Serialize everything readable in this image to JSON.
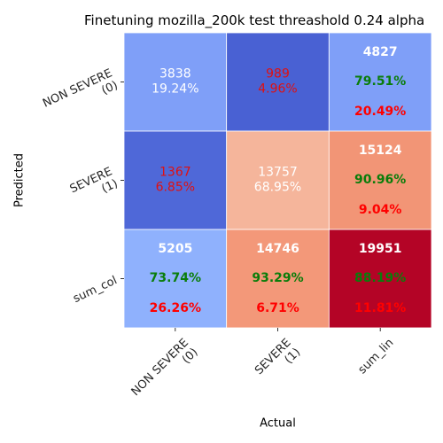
{
  "chart_data": {
    "type": "heatmap",
    "title": "Finetuning mozilla_200k test threashold 0.24 alpha",
    "xlabel": "Actual",
    "ylabel": "Predicted",
    "x_categories": [
      "NON SEVERE\n(0)",
      "SEVERE\n(1)",
      "sum_lin"
    ],
    "y_categories": [
      "NON SEVERE\n(0)",
      "SEVERE\n(1)",
      "sum_col"
    ],
    "cells": [
      {
        "row": 0,
        "col": 0,
        "kind": "main",
        "count": "3838",
        "pct": "19.24%",
        "color": "#7f9ff8",
        "text_color": "#ffffff"
      },
      {
        "row": 0,
        "col": 1,
        "kind": "main",
        "count": "989",
        "pct": "4.96%",
        "color": "#4961d3",
        "text_color": "#e01010"
      },
      {
        "row": 0,
        "col": 2,
        "kind": "sum",
        "total": "4827",
        "ok": "79.51%",
        "err": "20.49%",
        "color": "#7f9ff8"
      },
      {
        "row": 1,
        "col": 0,
        "kind": "main",
        "count": "1367",
        "pct": "6.85%",
        "color": "#4f68d8",
        "text_color": "#e01010"
      },
      {
        "row": 1,
        "col": 1,
        "kind": "main",
        "count": "13757",
        "pct": "68.95%",
        "color": "#f5b59b",
        "text_color": "#ffffff"
      },
      {
        "row": 1,
        "col": 2,
        "kind": "sum",
        "total": "15124",
        "ok": "90.96%",
        "err": "9.04%",
        "color": "#f29576"
      },
      {
        "row": 2,
        "col": 0,
        "kind": "sum",
        "total": "5205",
        "ok": "73.74%",
        "err": "26.26%",
        "color": "#8fb1fd"
      },
      {
        "row": 2,
        "col": 1,
        "kind": "sum",
        "total": "14746",
        "ok": "93.29%",
        "err": "6.71%",
        "color": "#f39879"
      },
      {
        "row": 2,
        "col": 2,
        "kind": "sum",
        "total": "19951",
        "ok": "88.19%",
        "err": "11.81%",
        "color": "#b40426"
      }
    ],
    "colors": {
      "ok": "#0a7d0a",
      "err": "#ff0000",
      "total": "#ffffff",
      "grid": "#ffffff"
    }
  }
}
